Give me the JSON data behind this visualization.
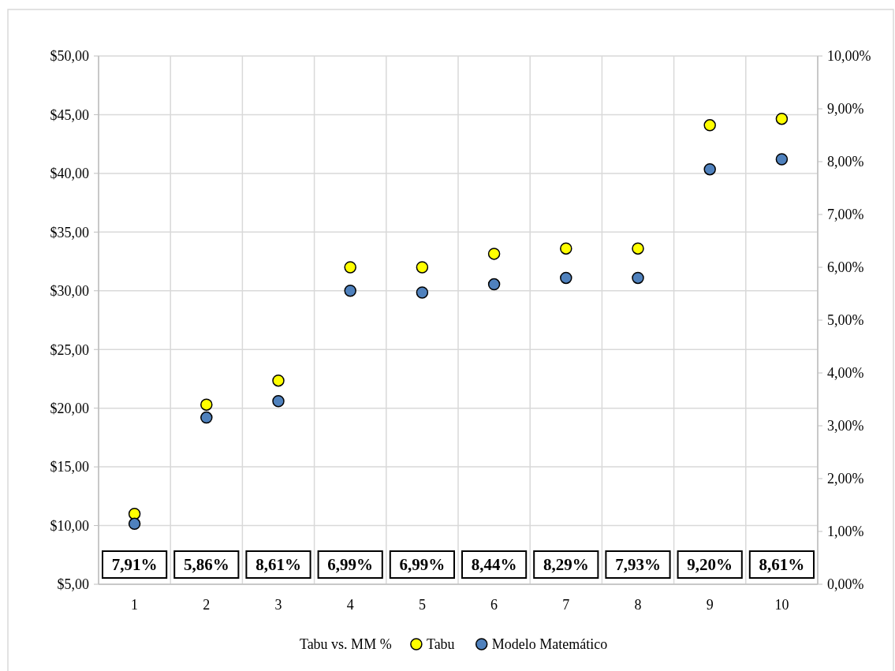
{
  "chart_data": {
    "type": "scatter",
    "categories": [
      "1",
      "2",
      "3",
      "4",
      "5",
      "6",
      "7",
      "8",
      "9",
      "10"
    ],
    "legend_title": "Tabu vs. MM %",
    "series": [
      {
        "name": "Tabu",
        "color": "#ffff00",
        "values": [
          11.0,
          20.3,
          22.35,
          32.0,
          32.0,
          33.15,
          33.6,
          33.6,
          44.1,
          44.65
        ]
      },
      {
        "name": "Modelo Matemático",
        "color": "#4f81bd",
        "values": [
          10.15,
          19.2,
          20.6,
          30.0,
          29.85,
          30.55,
          31.1,
          31.1,
          40.35,
          41.2
        ]
      }
    ],
    "annotations": [
      "7,91%",
      "5,86%",
      "8,61%",
      "6,99%",
      "6,99%",
      "8,44%",
      "8,29%",
      "7,93%",
      "9,20%",
      "8,61%"
    ],
    "ylim": [
      5,
      50
    ],
    "yticks": [
      {
        "value": 5,
        "label": "$5,00"
      },
      {
        "value": 10,
        "label": "$10,00"
      },
      {
        "value": 15,
        "label": "$15,00"
      },
      {
        "value": 20,
        "label": "$20,00"
      },
      {
        "value": 25,
        "label": "$25,00"
      },
      {
        "value": 30,
        "label": "$30,00"
      },
      {
        "value": 35,
        "label": "$35,00"
      },
      {
        "value": 40,
        "label": "$40,00"
      },
      {
        "value": 45,
        "label": "$45,00"
      },
      {
        "value": 50,
        "label": "$50,00"
      }
    ],
    "y2lim": [
      0,
      10
    ],
    "y2ticks": [
      {
        "value": 0,
        "label": "0,00%"
      },
      {
        "value": 1,
        "label": "1,00%"
      },
      {
        "value": 2,
        "label": "2,00%"
      },
      {
        "value": 3,
        "label": "3,00%"
      },
      {
        "value": 4,
        "label": "4,00%"
      },
      {
        "value": 5,
        "label": "5,00%"
      },
      {
        "value": 6,
        "label": "6,00%"
      },
      {
        "value": 7,
        "label": "7,00%"
      },
      {
        "value": 8,
        "label": "8,00%"
      },
      {
        "value": 9,
        "label": "9,00%"
      },
      {
        "value": 10,
        "label": "10,00%"
      }
    ],
    "grid": true,
    "legend": "bottom",
    "marker": "circle"
  }
}
